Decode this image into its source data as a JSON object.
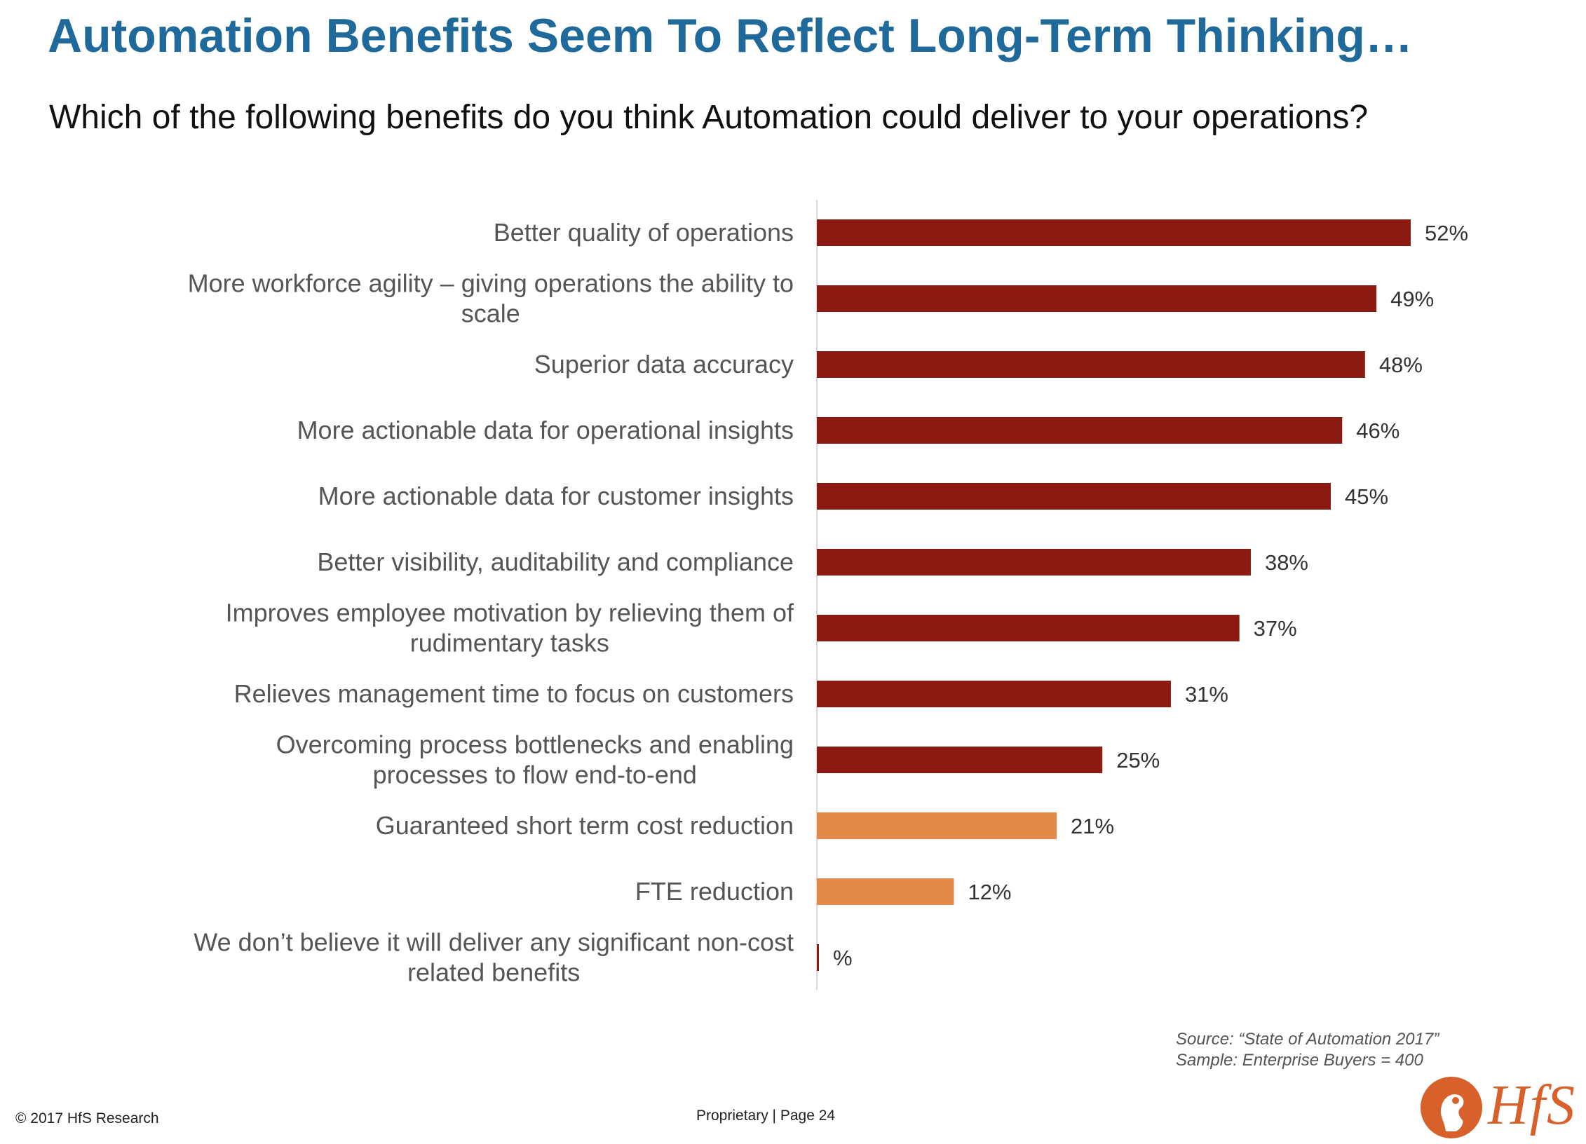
{
  "title": "Automation Benefits Seem To Reflect Long-Term Thinking…",
  "subtitle": "Which of the following benefits do you think Automation could deliver to your operations?",
  "colors": {
    "title": "#1f6a9a",
    "bar_primary": "#8b1a12",
    "bar_cost": "#e3894a",
    "logo": "#d8602a"
  },
  "chart_data": {
    "type": "bar",
    "orientation": "horizontal",
    "xlabel": "",
    "ylabel": "",
    "xlim": [
      0,
      52
    ],
    "grid": false,
    "legend": "none",
    "categories": [
      [
        "Better quality of operations"
      ],
      [
        "More workforce agility – giving operations the ability to",
        "scale"
      ],
      [
        "Superior data accuracy"
      ],
      [
        "More actionable data for operational insights"
      ],
      [
        "More actionable data for customer insights"
      ],
      [
        "Better visibility, auditability and compliance"
      ],
      [
        "Improves employee motivation by relieving them of",
        "rudimentary tasks"
      ],
      [
        "Relieves management time to focus on customers"
      ],
      [
        "Overcoming process bottlenecks and enabling",
        "processes to flow end-to-end"
      ],
      [
        "Guaranteed short term cost reduction"
      ],
      [
        "FTE reduction"
      ],
      [
        "We don’t believe it will deliver any significant non-cost",
        "related benefits"
      ]
    ],
    "values": [
      52,
      49,
      48,
      46,
      45,
      38,
      37,
      31,
      25,
      21,
      12,
      null
    ],
    "value_labels": [
      "52%",
      "49%",
      "48%",
      "46%",
      "45%",
      "38%",
      "37%",
      "31%",
      "25%",
      "21%",
      "12%",
      "%"
    ],
    "bar_colors": [
      "#8b1a12",
      "#8b1a12",
      "#8b1a12",
      "#8b1a12",
      "#8b1a12",
      "#8b1a12",
      "#8b1a12",
      "#8b1a12",
      "#8b1a12",
      "#e3894a",
      "#e3894a",
      "#8b1a12"
    ]
  },
  "source": {
    "line1": "Source: “State of Automation 2017”",
    "line2": "Sample: Enterprise Buyers = 400"
  },
  "footer": {
    "copyright": "© 2017 HfS Research",
    "center": "Proprietary | Page 24"
  },
  "logo": {
    "text": "HfS",
    "icon": "hfs-logo-icon"
  }
}
